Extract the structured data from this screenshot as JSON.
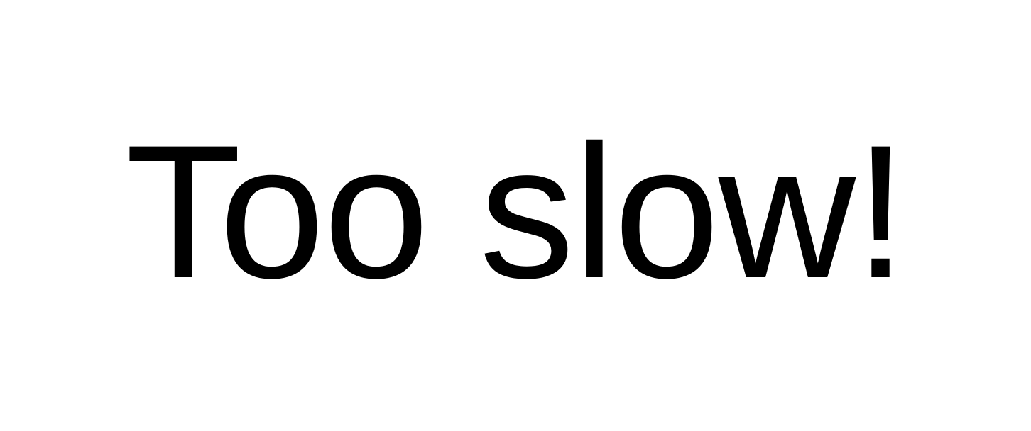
{
  "screen": {
    "message": "Too slow!",
    "background_color": "#ffffff",
    "text_color": "#000000"
  }
}
